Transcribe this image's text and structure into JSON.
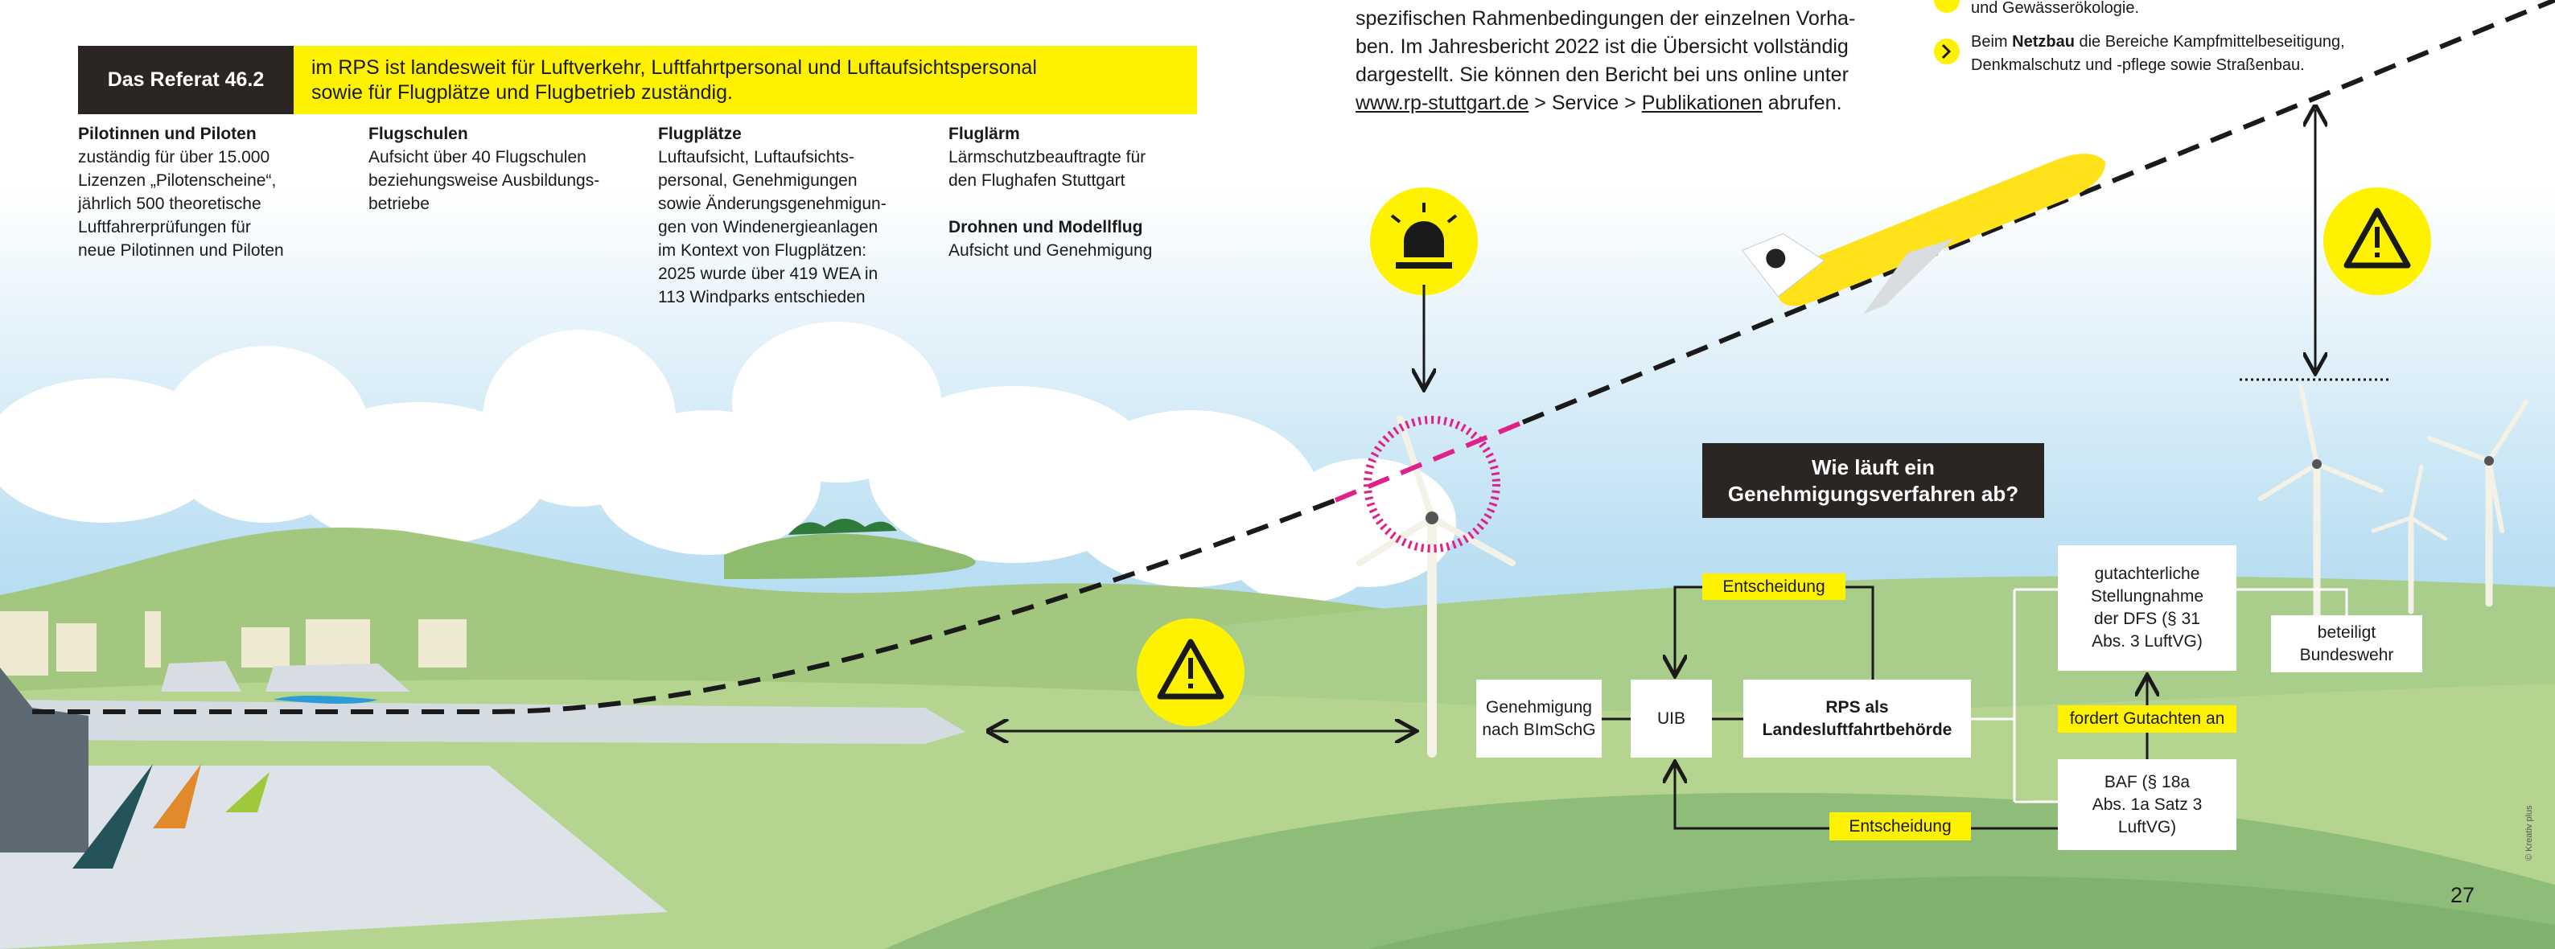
{
  "header": {
    "label": "Das Referat 46.2",
    "text_lines": [
      "im RPS ist landesweit für Luftverkehr, Luftfahrtpersonal und Luftaufsichtspersonal",
      "sowie für Flugplätze und Flugbetrieb zuständig."
    ]
  },
  "columns": [
    {
      "title": "Pilotinnen und Piloten",
      "lines": [
        "zuständig für über 15.000",
        "Lizenzen „Pilotenscheine“,",
        "jährlich 500 theoretische",
        "Luftfahrerprüfungen für",
        "neue Pilotinnen und Piloten"
      ]
    },
    {
      "title": "Flugschulen",
      "lines": [
        "Aufsicht über 40 Flugschulen",
        "beziehungsweise Ausbildungs-",
        "betriebe"
      ]
    },
    {
      "title": "Flugplätze",
      "lines": [
        "Luftaufsicht, Luftaufsichts-",
        "personal, Genehmigungen",
        "sowie Änderungsgenehmigun-",
        "gen von Windenergieanlagen",
        "im Kontext von Flugplätzen:",
        "2025 wurde über 419 WEA in",
        "113 Windparks entschieden"
      ]
    },
    {
      "title": "Fluglärm",
      "lines": [
        "Lärmschutzbeauftragte für",
        "den Flughafen Stuttgart"
      ],
      "sub_title": "Drohnen und Modellflug",
      "sub_lines": [
        "Aufsicht und Genehmigung"
      ]
    }
  ],
  "intro": {
    "lines": [
      "spezifischen Rahmenbedingungen der einzelnen Vorha-",
      "ben. Im Jahresbericht 2022 ist die Übersicht vollständig",
      "dargestellt. Sie können den Bericht bei uns online unter"
    ],
    "link": "www.rp-stuttgart.de",
    "sep": " > Service > ",
    "link2": "Publikationen",
    "end": " abrufen."
  },
  "bullets": {
    "fragment": "und Gewässerökologie.",
    "pre": "Beim ",
    "bold": "Netzbau",
    "post": " die Bereiche Kampfmittelbeseitigung,",
    "post2": "Denkmalschutz und -pflege sowie Straßenbau."
  },
  "diagram": {
    "title_lines": [
      "Wie läuft ein",
      "Genehmigungsverfahren ab?"
    ],
    "decision_top": "Entscheidung",
    "nodes": [
      {
        "lines": [
          "Genehmigung",
          "nach BImSchG"
        ]
      },
      {
        "lines": [
          "UIB"
        ]
      },
      {
        "lines": [
          "RPS als",
          "Landesluftfahrtbehörde"
        ]
      },
      {
        "lines": [
          "gutachterliche",
          "Stellungnahme",
          "der DFS (§ 31",
          "Abs. 3 LuftVG)"
        ]
      },
      {
        "lines": [
          "beteiligt",
          "Bundeswehr"
        ]
      },
      {
        "lines": [
          "BAF (§ 18a",
          "Abs. 1a Satz 3",
          "LuftVG)"
        ]
      }
    ],
    "request": "fordert Gutachten an",
    "decision_bottom": "Entscheidung"
  },
  "page_number": "27",
  "credit": "© Kreativ plus"
}
